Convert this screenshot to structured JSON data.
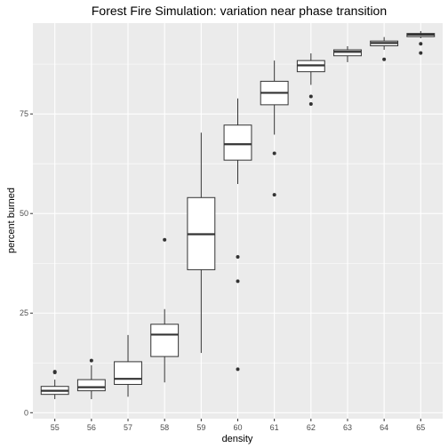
{
  "chart_data": {
    "type": "boxplot",
    "title": "Forest Fire Simulation: variation near phase transition",
    "xlabel": "density",
    "ylabel": "percent burned",
    "categories": [
      "55",
      "56",
      "57",
      "58",
      "59",
      "60",
      "61",
      "62",
      "63",
      "64",
      "65"
    ],
    "ylim": [
      -1.5,
      97.8
    ],
    "y_ticks": [
      0,
      25,
      50,
      75
    ],
    "y_tick_labels": [
      "0",
      "25",
      "50",
      "75"
    ],
    "grid": true,
    "legend": "none",
    "colors": {
      "panel": "#ebebeb",
      "grid_major": "#ffffff",
      "box_fill": "#ffffff",
      "box_line": "#333333",
      "tick_text": "#4d4d4d"
    },
    "series": [
      {
        "category": "55",
        "q1": 4.6,
        "median": 5.5,
        "q3": 6.6,
        "whisker_low": 3.4,
        "whisker_high": 8.3,
        "outliers": [
          10.3,
          10.1
        ]
      },
      {
        "category": "56",
        "q1": 5.5,
        "median": 6.4,
        "q3": 8.3,
        "whisker_low": 3.4,
        "whisker_high": 11.9,
        "outliers": [
          13.1
        ]
      },
      {
        "category": "57",
        "q1": 7.1,
        "median": 8.5,
        "q3": 12.8,
        "whisker_low": 4.0,
        "whisker_high": 19.5,
        "outliers": []
      },
      {
        "category": "58",
        "q1": 14.1,
        "median": 19.6,
        "q3": 22.2,
        "whisker_low": 7.6,
        "whisker_high": 26.0,
        "outliers": [
          43.4
        ]
      },
      {
        "category": "59",
        "q1": 35.9,
        "median": 44.8,
        "q3": 54.0,
        "whisker_low": 15.0,
        "whisker_high": 70.3,
        "outliers": []
      },
      {
        "category": "60",
        "q1": 63.4,
        "median": 67.4,
        "q3": 72.2,
        "whisker_low": 57.4,
        "whisker_high": 78.9,
        "outliers": [
          39.1,
          33.0,
          10.9
        ]
      },
      {
        "category": "61",
        "q1": 77.3,
        "median": 80.3,
        "q3": 83.2,
        "whisker_low": 69.8,
        "whisker_high": 88.4,
        "outliers": [
          65.1,
          54.7
        ]
      },
      {
        "category": "62",
        "q1": 85.6,
        "median": 87.2,
        "q3": 88.4,
        "whisker_low": 82.3,
        "whisker_high": 90.2,
        "outliers": [
          79.4,
          77.5
        ]
      },
      {
        "category": "63",
        "q1": 89.6,
        "median": 90.6,
        "q3": 91.1,
        "whisker_low": 88.0,
        "whisker_high": 92.0,
        "outliers": []
      },
      {
        "category": "64",
        "q1": 92.1,
        "median": 92.8,
        "q3": 93.3,
        "whisker_low": 91.1,
        "whisker_high": 94.3,
        "outliers": [
          88.7
        ]
      },
      {
        "category": "65",
        "q1": 94.4,
        "median": 94.9,
        "q3": 95.2,
        "whisker_low": 94.0,
        "whisker_high": 95.8,
        "outliers": [
          92.6,
          90.3
        ]
      }
    ]
  }
}
